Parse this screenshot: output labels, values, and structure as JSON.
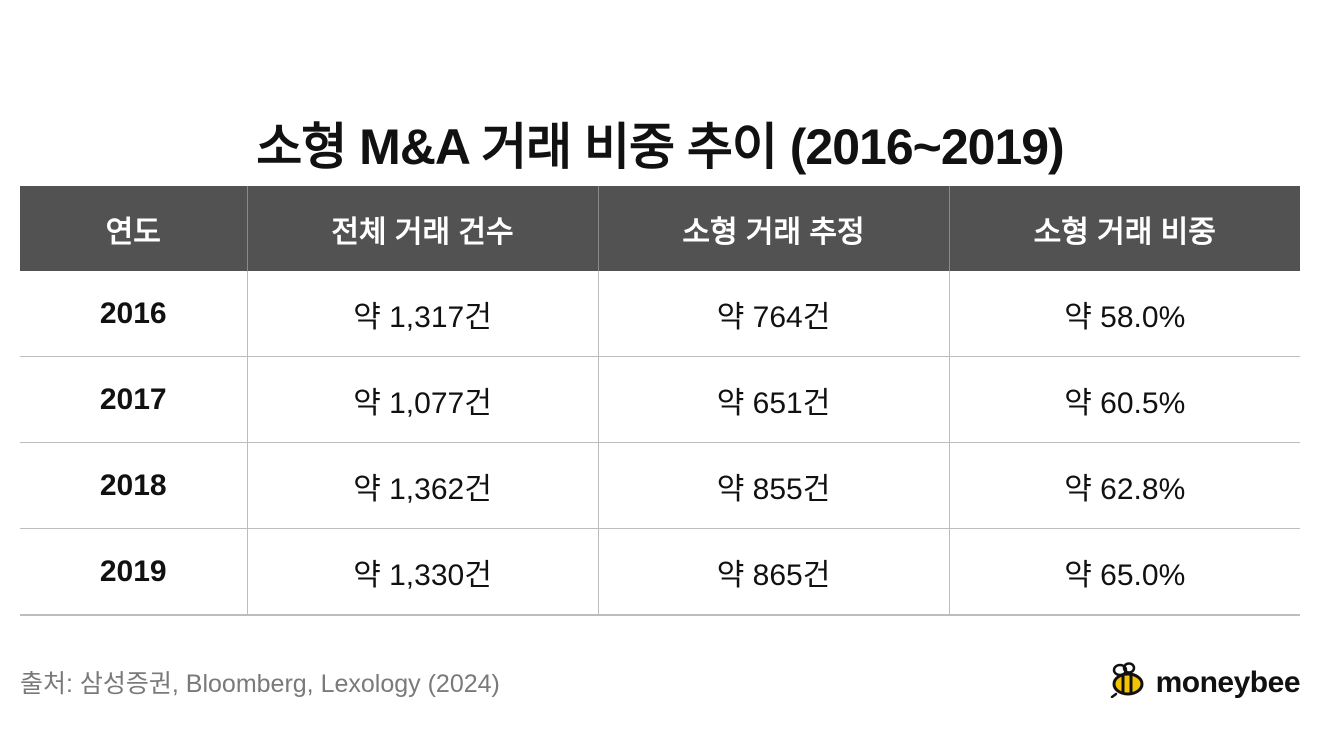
{
  "title": "소형 M&A 거래 비중 추이 (2016~2019)",
  "chart_data": {
    "type": "table",
    "columns": [
      "연도",
      "전체 거래 건수",
      "소형 거래 추정",
      "소형 거래 비중"
    ],
    "rows": [
      [
        "2016",
        "약 1,317건",
        "약 764건",
        "약 58.0%"
      ],
      [
        "2017",
        "약 1,077건",
        "약 651건",
        "약 60.5%"
      ],
      [
        "2018",
        "약 1,362건",
        "약 855건",
        "약 62.8%"
      ],
      [
        "2019",
        "약 1,330건",
        "약 865건",
        "약 65.0%"
      ]
    ]
  },
  "footer": {
    "source": "출처: 삼성증권, Bloomberg, Lexology (2024)",
    "brand": "moneybee",
    "brand_icon": "bee-icon"
  },
  "colors": {
    "header_bg": "#525252",
    "header_text": "#ffffff",
    "grid": "#bdbdbd",
    "brand_yellow": "#f5c400"
  }
}
